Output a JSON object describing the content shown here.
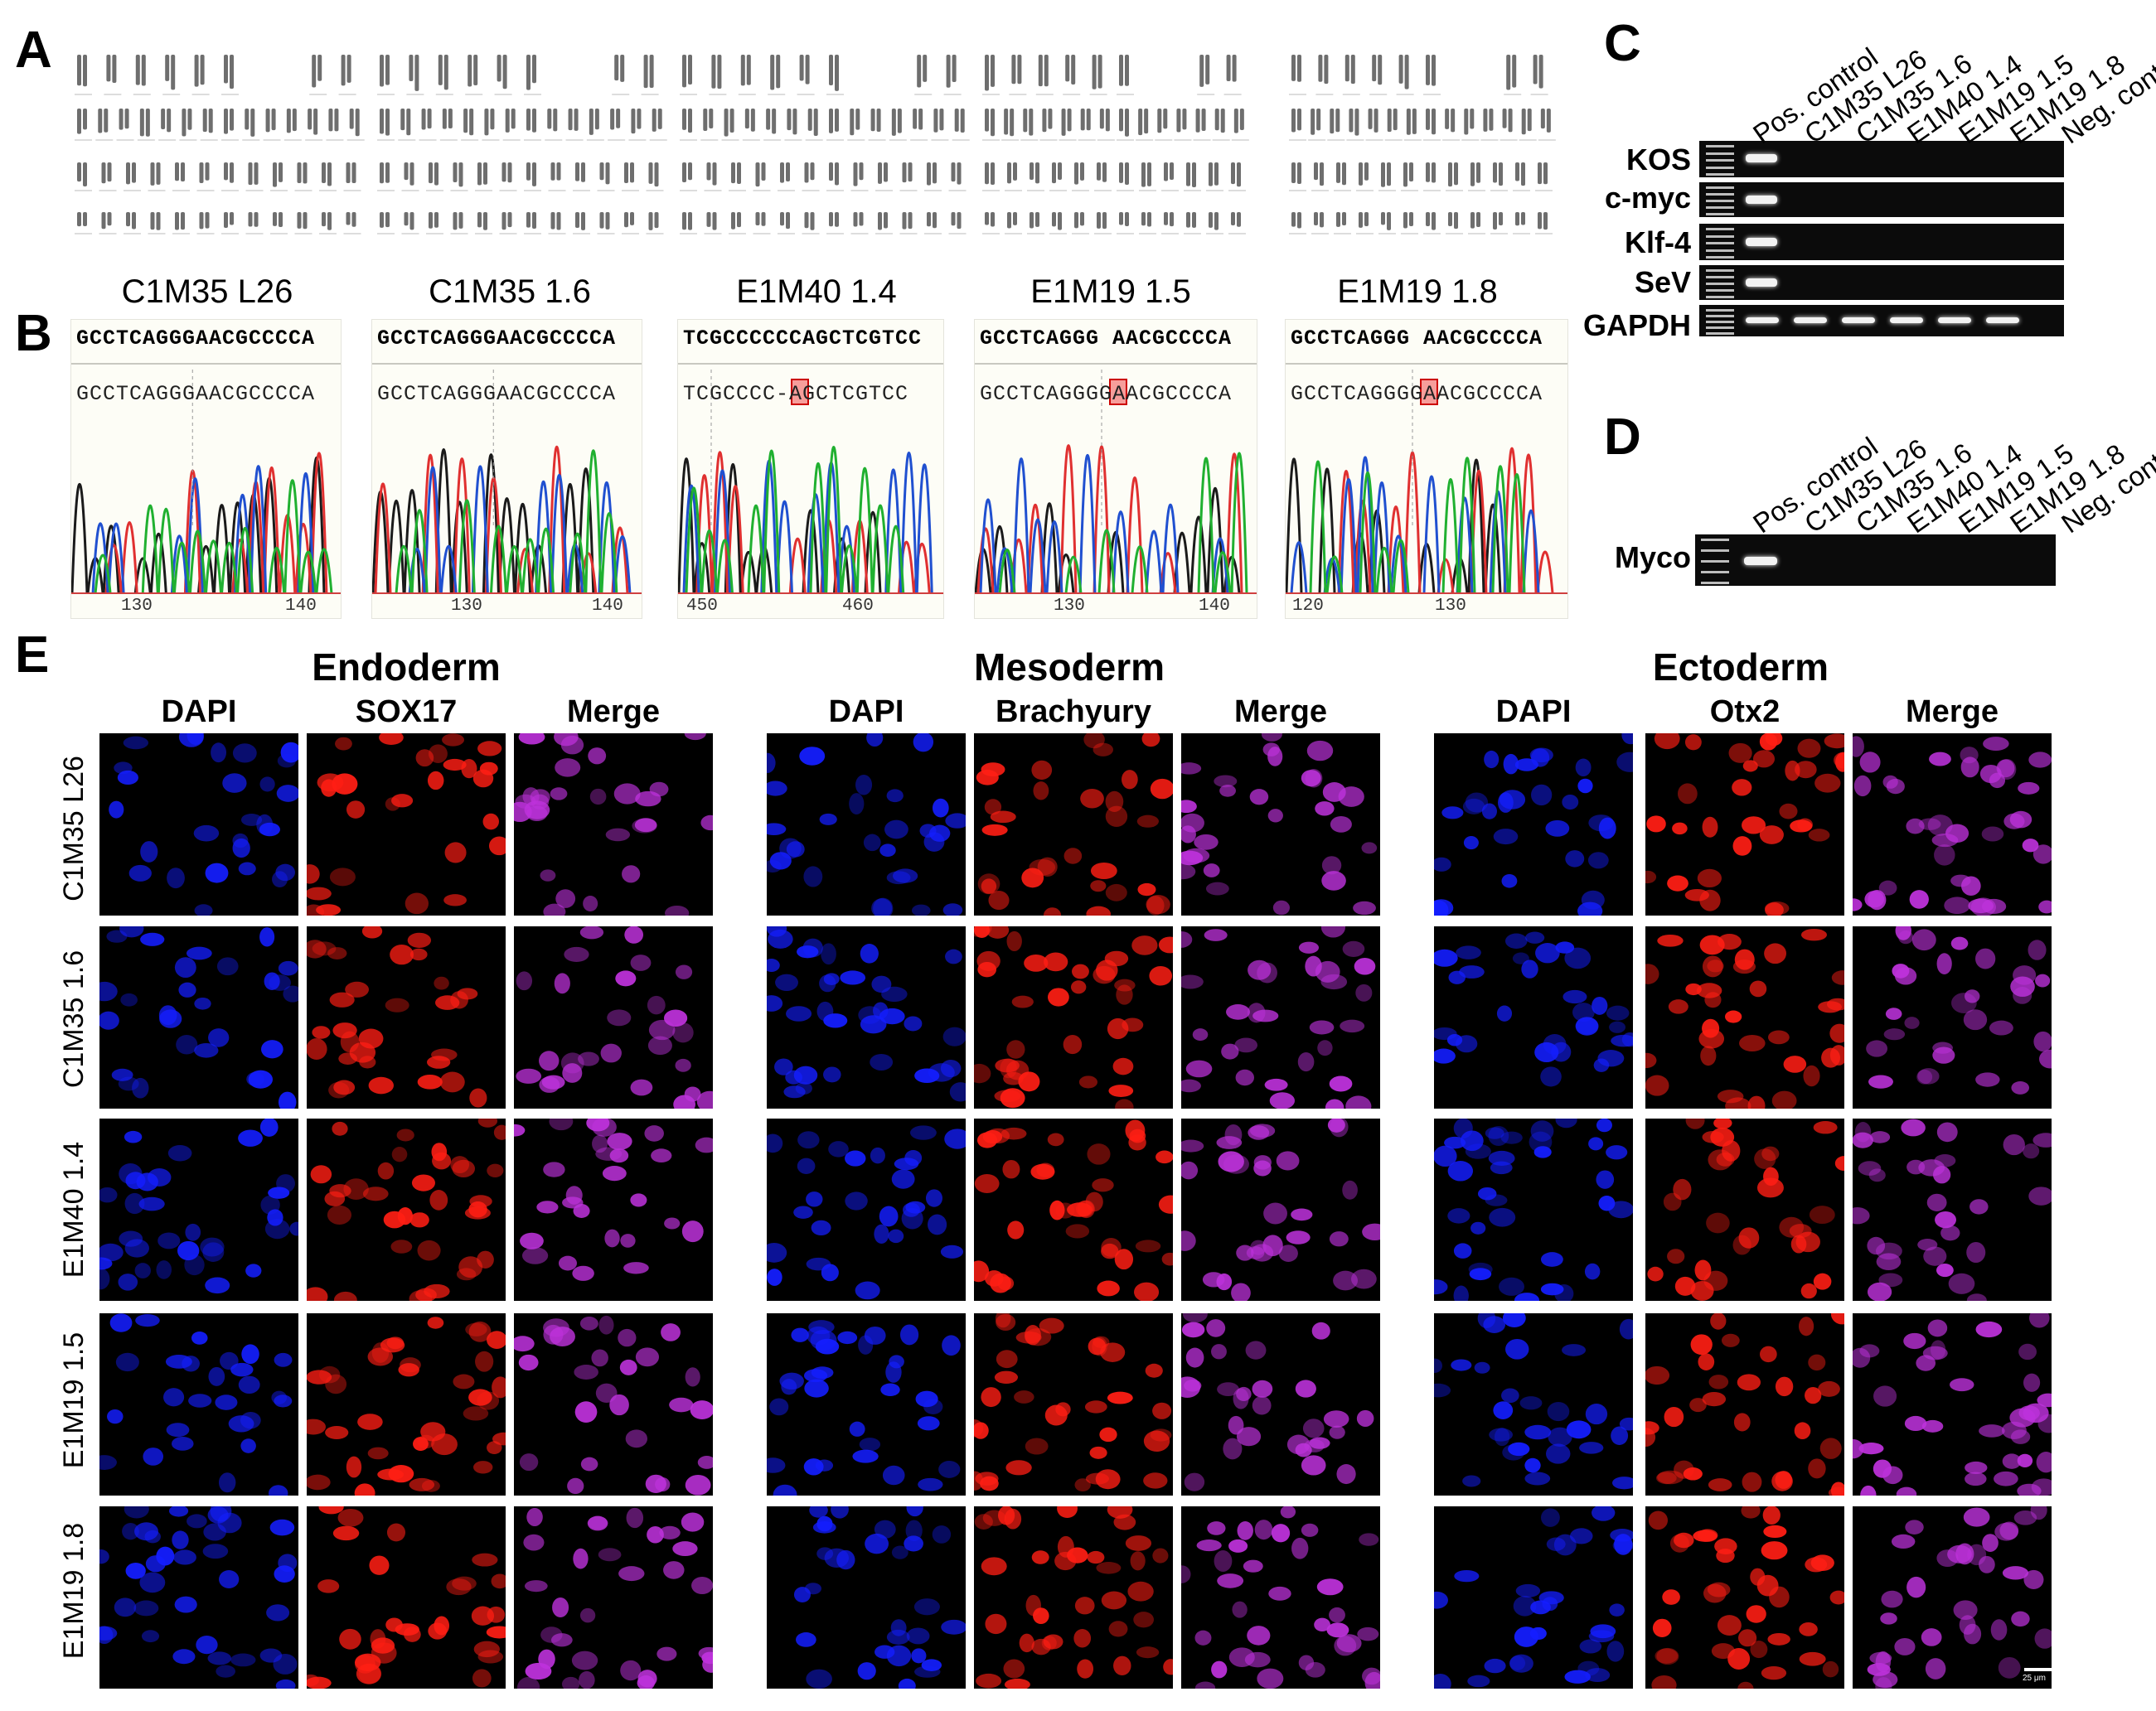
{
  "panels": {
    "A": "A",
    "B": "B",
    "C": "C",
    "D": "D",
    "E": "E"
  },
  "clones": [
    "C1M35 L26",
    "C1M35 1.6",
    "E1M40 1.4",
    "E1M19 1.5",
    "E1M19 1.8"
  ],
  "sequencing": [
    {
      "ref": "GCCTCAGGGAACGCCCCA",
      "read": "GCCTCAGGGAACGCCCCA",
      "ticks": [
        "130",
        "140"
      ]
    },
    {
      "ref": "GCCTCAGGGAACGCCCCA",
      "read": "GCCTCAGGGAACGCCCCA",
      "ticks": [
        "130",
        "140"
      ]
    },
    {
      "ref": "TCGCCCCCCAGCTCGTCC",
      "read": "TCGCCCC-AGCTCGTCC",
      "ticks": [
        "450",
        "460"
      ]
    },
    {
      "ref": "GCCTCAGGG AACGCCCCA",
      "read": "GCCTCAGGGGAACGCCCCA",
      "ticks": [
        "130",
        "140"
      ]
    },
    {
      "ref": "GCCTCAGGG AACGCCCCA",
      "read": "GCCTCAGGGGAACGCCCCA",
      "ticks": [
        "120",
        "130"
      ]
    }
  ],
  "gel_lanes": [
    "Pos. control",
    "C1M35 L26",
    "C1M35 1.6",
    "E1M40 1.4",
    "E1M19 1.5",
    "E1M19 1.8",
    "Neg. control"
  ],
  "gel_c": {
    "rows": [
      "KOS",
      "c-myc",
      "Klf-4",
      "SeV",
      "GAPDH"
    ]
  },
  "gel_d": {
    "rows": [
      "Myco"
    ]
  },
  "germ_layers": [
    {
      "title": "Endoderm",
      "columns": [
        "DAPI",
        "SOX17",
        "Merge"
      ]
    },
    {
      "title": "Mesoderm",
      "columns": [
        "DAPI",
        "Brachyury",
        "Merge"
      ]
    },
    {
      "title": "Ectoderm",
      "columns": [
        "DAPI",
        "Otx2",
        "Merge"
      ]
    }
  ],
  "scale_bar": "25 μm",
  "colors": {
    "dapi": "#1020ff",
    "marker": "#ff1a10",
    "merge": "#b030d0"
  }
}
